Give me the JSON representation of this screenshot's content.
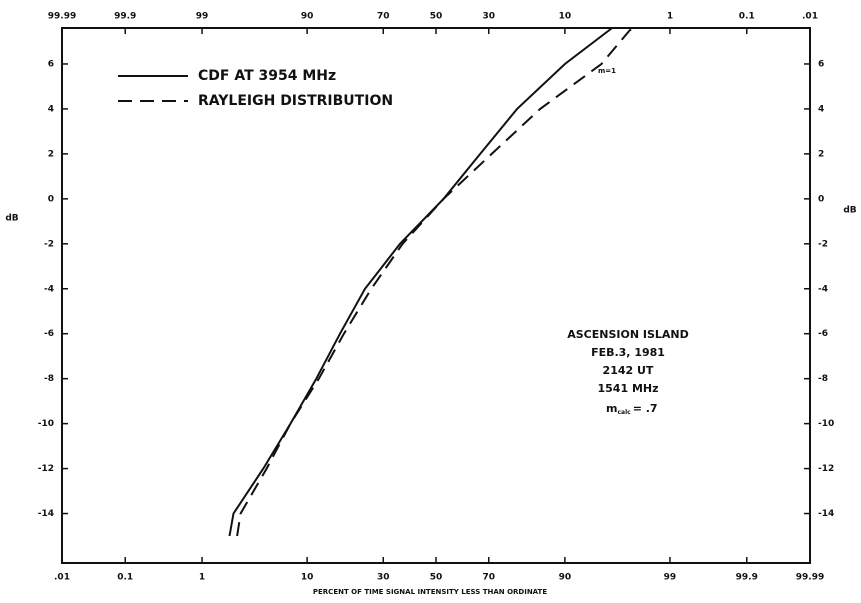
{
  "chart_data": {
    "type": "line",
    "xlabel": "PERCENT OF TIME SIGNAL INTENSITY LESS THAN ORDINATE",
    "ylabel": "dB",
    "x_scale": "probability",
    "xlim": [
      0.01,
      99.99
    ],
    "xticks": [
      {
        "value": 0.01,
        "label": ".01"
      },
      {
        "value": 0.1,
        "label": "0.1"
      },
      1,
      10,
      30,
      50,
      70,
      90,
      99,
      {
        "value": 99.9,
        "label": "99.9"
      },
      {
        "value": 99.99,
        "label": "99.99"
      }
    ],
    "x2lim": [
      99.99,
      0.01
    ],
    "x2ticks": [
      {
        "value": 99.99,
        "label": "99.99"
      },
      {
        "value": 99.9,
        "label": "99.9"
      },
      99,
      90,
      70,
      50,
      30,
      10,
      1,
      {
        "value": 0.1,
        "label": "0.1"
      },
      {
        "value": 0.01,
        "label": ".01"
      }
    ],
    "ylim": [
      -16.2,
      7.6
    ],
    "yticks": [
      -14,
      -12,
      -10,
      -8,
      -6,
      -4,
      -2,
      0,
      2,
      4,
      6
    ],
    "series": [
      {
        "name": "CDF AT 3954 MHz",
        "color": "#111111",
        "dash": "solid",
        "x": [
          2.0,
          2.2,
          4.3,
          7.4,
          11.7,
          17,
          24,
          36,
          53,
          67,
          79,
          90,
          96
        ],
        "values": [
          -15,
          -14,
          -12,
          -10,
          -8,
          -6,
          -4,
          -2,
          0,
          2,
          4,
          6,
          7.6
        ]
      },
      {
        "name": "RAYLEIGH DISTRIBUTION",
        "color": "#111111",
        "dash": "dashed",
        "x": [
          2.4,
          2.6,
          4.6,
          7.4,
          12.2,
          18,
          26,
          37,
          53,
          71,
          85,
          95,
          97.3,
          97.6
        ],
        "values": [
          -15,
          -14,
          -12,
          -10,
          -8,
          -6,
          -4,
          -2,
          0,
          2,
          4,
          6,
          7.5,
          7.6
        ]
      }
    ],
    "annotations": [
      "m=1",
      "ASCENSION ISLAND",
      "FEB.3, 1981",
      "2142 UT",
      "1541 MHz"
    ],
    "m_symbol": "m",
    "m_subscript": "calc",
    "m_value": "= .7"
  }
}
